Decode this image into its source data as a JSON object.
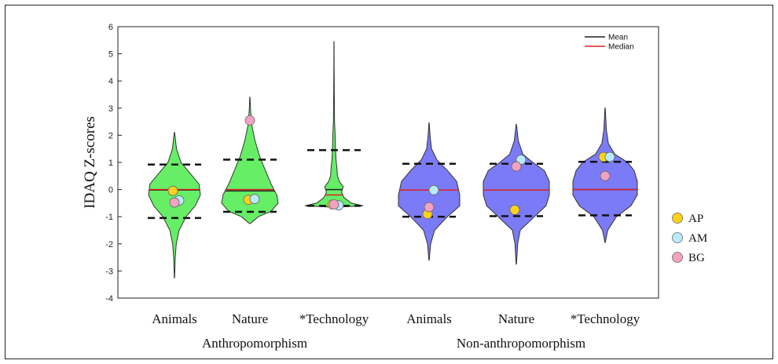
{
  "chart_data": {
    "type": "violin",
    "ylabel": "IDAQ Z-scores",
    "ylim": [
      -4,
      6
    ],
    "yticks": [
      -4,
      -3,
      -2,
      -1,
      0,
      1,
      2,
      3,
      4,
      5,
      6
    ],
    "groups": [
      {
        "label": "Anthropomorphism",
        "color": "#66ee66"
      },
      {
        "label": "Non-anthropomorphism",
        "color": "#7b7bf7"
      }
    ],
    "categories": [
      {
        "label": "Animals",
        "group": 0,
        "min": -3.25,
        "max": 2.1,
        "mean": -0.02,
        "median": 0.0,
        "sd_low": -1.05,
        "sd_high": 0.92,
        "profile": [
          [
            -3.25,
            0.005
          ],
          [
            -2.5,
            0.03
          ],
          [
            -2.0,
            0.07
          ],
          [
            -1.5,
            0.18
          ],
          [
            -1.0,
            0.45
          ],
          [
            -0.6,
            0.8
          ],
          [
            -0.2,
            1.0
          ],
          [
            0.2,
            0.95
          ],
          [
            0.6,
            0.6
          ],
          [
            1.0,
            0.25
          ],
          [
            1.5,
            0.08
          ],
          [
            2.1,
            0.005
          ]
        ],
        "points": {
          "AP": -0.05,
          "AM": -0.4,
          "BG": -0.48
        }
      },
      {
        "label": "Nature",
        "group": 0,
        "min": -1.25,
        "max": 3.4,
        "mean": -0.05,
        "median": 0.0,
        "sd_low": -0.82,
        "sd_high": 1.1,
        "profile": [
          [
            -1.25,
            0.02
          ],
          [
            -1.0,
            0.3
          ],
          [
            -0.8,
            0.75
          ],
          [
            -0.5,
            1.0
          ],
          [
            -0.2,
            0.95
          ],
          [
            0.2,
            0.75
          ],
          [
            0.7,
            0.55
          ],
          [
            1.2,
            0.35
          ],
          [
            1.8,
            0.18
          ],
          [
            2.4,
            0.06
          ],
          [
            3.0,
            0.02
          ],
          [
            3.4,
            0.005
          ]
        ],
        "points": {
          "AP": -0.38,
          "AM": -0.35,
          "BG": 2.55
        }
      },
      {
        "label": "*Technology",
        "group": 0,
        "min": -0.65,
        "max": 5.45,
        "mean": 0.0,
        "median": -0.2,
        "sd_low": -0.6,
        "sd_high": 1.45,
        "profile": [
          [
            -0.65,
            0.05
          ],
          [
            -0.6,
            1.0
          ],
          [
            -0.5,
            0.6
          ],
          [
            -0.3,
            0.35
          ],
          [
            -0.1,
            0.26
          ],
          [
            0.1,
            0.32
          ],
          [
            0.3,
            0.18
          ],
          [
            0.5,
            0.12
          ],
          [
            0.8,
            0.1
          ],
          [
            1.1,
            0.07
          ],
          [
            1.5,
            0.05
          ],
          [
            2.0,
            0.04
          ],
          [
            2.5,
            0.02
          ],
          [
            3.5,
            0.01
          ],
          [
            4.5,
            0.006
          ],
          [
            5.45,
            0.003
          ]
        ],
        "points": {
          "AP": -0.55,
          "AM": -0.58,
          "BG": -0.55
        }
      },
      {
        "label": "Animals",
        "group": 1,
        "min": -2.6,
        "max": 2.45,
        "mean": -0.02,
        "median": -0.02,
        "sd_low": -1.0,
        "sd_high": 0.95,
        "profile": [
          [
            -2.6,
            0.005
          ],
          [
            -2.0,
            0.05
          ],
          [
            -1.5,
            0.18
          ],
          [
            -1.0,
            0.6
          ],
          [
            -0.6,
            1.0
          ],
          [
            -0.2,
            1.0
          ],
          [
            0.3,
            0.9
          ],
          [
            0.7,
            0.6
          ],
          [
            1.1,
            0.25
          ],
          [
            1.5,
            0.08
          ],
          [
            2.0,
            0.03
          ],
          [
            2.45,
            0.005
          ]
        ],
        "points": {
          "AP": -0.9,
          "AM": -0.02,
          "BG": -0.65
        }
      },
      {
        "label": "Nature",
        "group": 1,
        "min": -2.75,
        "max": 2.4,
        "mean": -0.02,
        "median": -0.02,
        "sd_low": -0.98,
        "sd_high": 0.95,
        "profile": [
          [
            -2.75,
            0.005
          ],
          [
            -2.0,
            0.04
          ],
          [
            -1.5,
            0.12
          ],
          [
            -1.0,
            0.55
          ],
          [
            -0.6,
            0.9
          ],
          [
            -0.2,
            1.0
          ],
          [
            0.3,
            1.0
          ],
          [
            0.7,
            0.85
          ],
          [
            1.0,
            0.5
          ],
          [
            1.3,
            0.2
          ],
          [
            1.8,
            0.06
          ],
          [
            2.4,
            0.005
          ]
        ],
        "points": {
          "AP": -0.75,
          "AM": 1.1,
          "BG": 0.85
        }
      },
      {
        "label": "*Technology",
        "group": 1,
        "min": -1.95,
        "max": 3.0,
        "mean": 0.0,
        "median": 0.0,
        "sd_low": -0.95,
        "sd_high": 1.02,
        "profile": [
          [
            -1.95,
            0.005
          ],
          [
            -1.5,
            0.08
          ],
          [
            -1.0,
            0.35
          ],
          [
            -0.6,
            0.8
          ],
          [
            -0.2,
            1.0
          ],
          [
            0.3,
            1.0
          ],
          [
            0.7,
            0.9
          ],
          [
            1.0,
            0.7
          ],
          [
            1.3,
            0.3
          ],
          [
            1.7,
            0.1
          ],
          [
            2.2,
            0.04
          ],
          [
            3.0,
            0.005
          ]
        ],
        "points": {
          "AP": 1.2,
          "AM": 1.2,
          "BG": 0.5
        }
      }
    ],
    "legend_lines": [
      {
        "label": "Mean",
        "color": "#222222"
      },
      {
        "label": "Median",
        "color": "#e02020"
      }
    ],
    "legend_points": [
      {
        "label": "AP",
        "color": "#ffd21a"
      },
      {
        "label": "AM",
        "color": "#b8ecfb"
      },
      {
        "label": "BG",
        "color": "#f4a2c2"
      }
    ]
  }
}
